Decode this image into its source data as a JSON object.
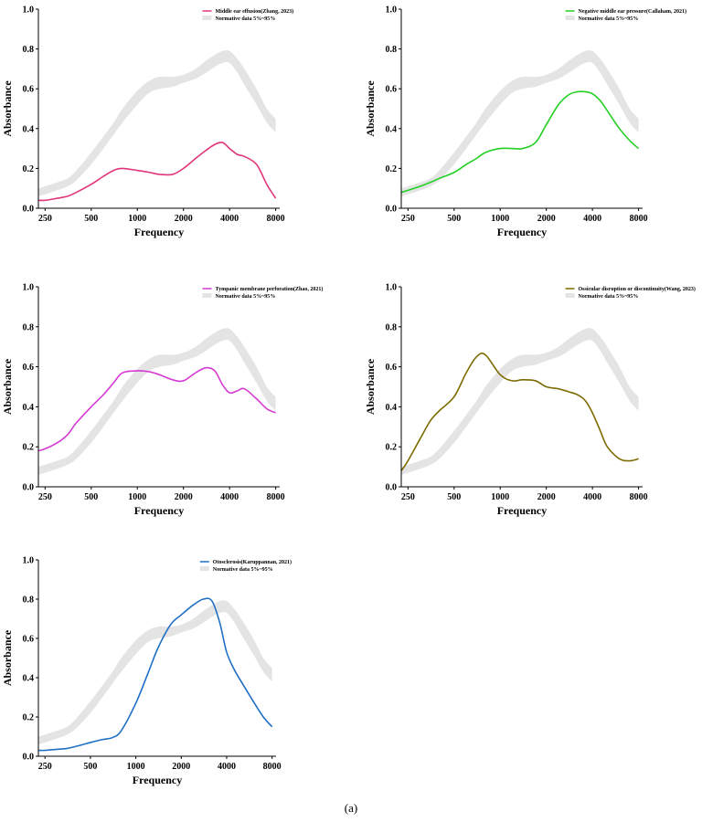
{
  "caption": "(a)",
  "colors": {
    "normative_band": "#e4e4e4",
    "axis": "#000000"
  },
  "chart_data": [
    {
      "type": "line",
      "xscale": "log",
      "x_ticks": [
        "250",
        "500",
        "1000",
        "2000",
        "4000",
        "8000"
      ],
      "x_tick_values": [
        250,
        500,
        1000,
        2000,
        4000,
        8000
      ],
      "y_ticks": [
        "0.0",
        "0.2",
        "0.4",
        "0.6",
        "0.8",
        "1.0"
      ],
      "y_tick_values": [
        0,
        0.2,
        0.4,
        0.6,
        0.8,
        1.0
      ],
      "ylim": [
        0,
        1.0
      ],
      "xlim": [
        226,
        8500
      ],
      "xlabel": "Frequency",
      "ylabel": "Absorbance",
      "legend_position": "top-right",
      "series": [
        {
          "name": "Middle ear effusion(Zhang, 2023)",
          "color": "#e0357a",
          "x": [
            226,
            250,
            300,
            350,
            400,
            500,
            600,
            700,
            800,
            1000,
            1200,
            1400,
            1700,
            2000,
            2400,
            2800,
            3200,
            3600,
            4000,
            4500,
            5000,
            6000,
            7000,
            8000
          ],
          "y": [
            0.04,
            0.04,
            0.05,
            0.06,
            0.08,
            0.12,
            0.16,
            0.19,
            0.2,
            0.19,
            0.18,
            0.17,
            0.17,
            0.2,
            0.25,
            0.29,
            0.32,
            0.33,
            0.3,
            0.27,
            0.26,
            0.22,
            0.12,
            0.05
          ]
        }
      ],
      "band": {
        "name": "Normative data 5%~95%",
        "x": [
          226,
          250,
          300,
          350,
          400,
          500,
          600,
          700,
          800,
          1000,
          1200,
          1400,
          1700,
          2000,
          2400,
          2800,
          3200,
          3600,
          4000,
          4500,
          5000,
          6000,
          7000,
          8000
        ],
        "lower": [
          0.06,
          0.07,
          0.09,
          0.11,
          0.14,
          0.22,
          0.3,
          0.37,
          0.43,
          0.52,
          0.58,
          0.6,
          0.61,
          0.63,
          0.65,
          0.68,
          0.71,
          0.73,
          0.73,
          0.68,
          0.62,
          0.52,
          0.43,
          0.38
        ],
        "upper": [
          0.1,
          0.11,
          0.13,
          0.15,
          0.19,
          0.28,
          0.36,
          0.43,
          0.5,
          0.59,
          0.64,
          0.66,
          0.66,
          0.67,
          0.7,
          0.74,
          0.77,
          0.79,
          0.79,
          0.75,
          0.7,
          0.6,
          0.5,
          0.45
        ]
      }
    },
    {
      "type": "line",
      "xscale": "log",
      "x_ticks": [
        "250",
        "500",
        "1000",
        "2000",
        "4000",
        "8000"
      ],
      "x_tick_values": [
        250,
        500,
        1000,
        2000,
        4000,
        8000
      ],
      "y_ticks": [
        "0.0",
        "0.2",
        "0.4",
        "0.6",
        "0.8",
        "1.0"
      ],
      "y_tick_values": [
        0,
        0.2,
        0.4,
        0.6,
        0.8,
        1.0
      ],
      "ylim": [
        0,
        1.0
      ],
      "xlim": [
        226,
        8500
      ],
      "xlabel": "Frequency",
      "ylabel": "Absorbance",
      "legend_position": "top-right",
      "series": [
        {
          "name": "Negative middle ear pressure(Callaham, 2021)",
          "color": "#22d022",
          "x": [
            226,
            250,
            300,
            350,
            400,
            500,
            600,
            700,
            800,
            1000,
            1200,
            1400,
            1700,
            2000,
            2400,
            2800,
            3200,
            3600,
            4000,
            4500,
            5000,
            6000,
            7000,
            8000
          ],
          "y": [
            0.08,
            0.09,
            0.11,
            0.13,
            0.15,
            0.18,
            0.22,
            0.25,
            0.28,
            0.3,
            0.3,
            0.3,
            0.33,
            0.42,
            0.52,
            0.57,
            0.585,
            0.585,
            0.575,
            0.54,
            0.49,
            0.4,
            0.34,
            0.3
          ]
        }
      ],
      "band": {
        "name": "Normative data 5%~95%",
        "x": [
          226,
          250,
          300,
          350,
          400,
          500,
          600,
          700,
          800,
          1000,
          1200,
          1400,
          1700,
          2000,
          2400,
          2800,
          3200,
          3600,
          4000,
          4500,
          5000,
          6000,
          7000,
          8000
        ],
        "lower": [
          0.06,
          0.07,
          0.09,
          0.11,
          0.14,
          0.22,
          0.3,
          0.37,
          0.43,
          0.52,
          0.58,
          0.6,
          0.61,
          0.63,
          0.65,
          0.68,
          0.71,
          0.73,
          0.73,
          0.68,
          0.62,
          0.52,
          0.43,
          0.38
        ],
        "upper": [
          0.1,
          0.11,
          0.13,
          0.15,
          0.19,
          0.28,
          0.36,
          0.43,
          0.5,
          0.59,
          0.64,
          0.66,
          0.66,
          0.67,
          0.7,
          0.74,
          0.77,
          0.79,
          0.79,
          0.75,
          0.7,
          0.6,
          0.5,
          0.45
        ]
      }
    },
    {
      "type": "line",
      "xscale": "log",
      "x_ticks": [
        "250",
        "500",
        "1000",
        "2000",
        "4000",
        "8000"
      ],
      "x_tick_values": [
        250,
        500,
        1000,
        2000,
        4000,
        8000
      ],
      "y_ticks": [
        "0.0",
        "0.2",
        "0.4",
        "0.6",
        "0.8",
        "1.0"
      ],
      "y_tick_values": [
        0,
        0.2,
        0.4,
        0.6,
        0.8,
        1.0
      ],
      "ylim": [
        0,
        1.0
      ],
      "xlim": [
        226,
        8500
      ],
      "xlabel": "Frequency",
      "ylabel": "Absorbance",
      "legend_position": "top-right",
      "series": [
        {
          "name": "Tympanic membrane perforation(Zhao, 2021)",
          "color": "#d43ad4",
          "x": [
            226,
            250,
            300,
            350,
            400,
            500,
            600,
            700,
            800,
            1000,
            1200,
            1400,
            1700,
            2000,
            2400,
            2800,
            3200,
            3600,
            4000,
            4500,
            5000,
            6000,
            7000,
            8000
          ],
          "y": [
            0.18,
            0.19,
            0.22,
            0.26,
            0.32,
            0.4,
            0.46,
            0.52,
            0.57,
            0.58,
            0.575,
            0.56,
            0.535,
            0.53,
            0.57,
            0.595,
            0.58,
            0.51,
            0.47,
            0.48,
            0.49,
            0.44,
            0.39,
            0.37
          ]
        }
      ],
      "band": {
        "name": "Normative data 5%~95%",
        "x": [
          226,
          250,
          300,
          350,
          400,
          500,
          600,
          700,
          800,
          1000,
          1200,
          1400,
          1700,
          2000,
          2400,
          2800,
          3200,
          3600,
          4000,
          4500,
          5000,
          6000,
          7000,
          8000
        ],
        "lower": [
          0.06,
          0.07,
          0.09,
          0.11,
          0.14,
          0.22,
          0.3,
          0.37,
          0.43,
          0.52,
          0.58,
          0.6,
          0.61,
          0.63,
          0.65,
          0.68,
          0.71,
          0.73,
          0.73,
          0.68,
          0.62,
          0.52,
          0.43,
          0.38
        ],
        "upper": [
          0.1,
          0.11,
          0.13,
          0.15,
          0.19,
          0.28,
          0.36,
          0.43,
          0.5,
          0.59,
          0.64,
          0.66,
          0.66,
          0.67,
          0.7,
          0.74,
          0.77,
          0.79,
          0.79,
          0.75,
          0.7,
          0.6,
          0.5,
          0.45
        ]
      }
    },
    {
      "type": "line",
      "xscale": "log",
      "x_ticks": [
        "250",
        "500",
        "1000",
        "2000",
        "4000",
        "8000"
      ],
      "x_tick_values": [
        250,
        500,
        1000,
        2000,
        4000,
        8000
      ],
      "y_ticks": [
        "0.0",
        "0.2",
        "0.4",
        "0.6",
        "0.8",
        "1.0"
      ],
      "y_tick_values": [
        0,
        0.2,
        0.4,
        0.6,
        0.8,
        1.0
      ],
      "ylim": [
        0,
        1.0
      ],
      "xlim": [
        226,
        8500
      ],
      "xlabel": "Frequency",
      "ylabel": "Absorbance",
      "legend_position": "top-right",
      "series": [
        {
          "name": "Ossicular disruption or discontinuity(Wang, 2023)",
          "color": "#7d6b00",
          "x": [
            226,
            250,
            300,
            350,
            400,
            500,
            600,
            700,
            800,
            1000,
            1200,
            1400,
            1700,
            2000,
            2400,
            2800,
            3200,
            3600,
            4000,
            4500,
            5000,
            6000,
            7000,
            8000
          ],
          "y": [
            0.08,
            0.13,
            0.24,
            0.33,
            0.38,
            0.45,
            0.57,
            0.65,
            0.66,
            0.56,
            0.53,
            0.535,
            0.53,
            0.5,
            0.49,
            0.475,
            0.46,
            0.43,
            0.37,
            0.28,
            0.2,
            0.14,
            0.13,
            0.14
          ]
        }
      ],
      "band": {
        "name": "Normative data 5%~95%",
        "x": [
          226,
          250,
          300,
          350,
          400,
          500,
          600,
          700,
          800,
          1000,
          1200,
          1400,
          1700,
          2000,
          2400,
          2800,
          3200,
          3600,
          4000,
          4500,
          5000,
          6000,
          7000,
          8000
        ],
        "lower": [
          0.06,
          0.07,
          0.09,
          0.11,
          0.14,
          0.22,
          0.3,
          0.37,
          0.43,
          0.52,
          0.58,
          0.6,
          0.61,
          0.63,
          0.65,
          0.68,
          0.71,
          0.73,
          0.73,
          0.68,
          0.62,
          0.52,
          0.43,
          0.38
        ],
        "upper": [
          0.1,
          0.11,
          0.13,
          0.15,
          0.19,
          0.28,
          0.36,
          0.43,
          0.5,
          0.59,
          0.64,
          0.66,
          0.66,
          0.67,
          0.7,
          0.74,
          0.77,
          0.79,
          0.79,
          0.75,
          0.7,
          0.6,
          0.5,
          0.45
        ]
      }
    },
    {
      "type": "line",
      "xscale": "log",
      "x_ticks": [
        "250",
        "500",
        "1000",
        "2000",
        "4000",
        "8000"
      ],
      "x_tick_values": [
        250,
        500,
        1000,
        2000,
        4000,
        8000
      ],
      "y_ticks": [
        "0.0",
        "0.2",
        "0.4",
        "0.6",
        "0.8",
        "1.0"
      ],
      "y_tick_values": [
        0,
        0.2,
        0.4,
        0.6,
        0.8,
        1.0
      ],
      "ylim": [
        0,
        1.0
      ],
      "xlim": [
        226,
        8500
      ],
      "xlabel": "Frequency",
      "ylabel": "Absorbance",
      "legend_position": "top-right",
      "series": [
        {
          "name": "Otosclerosis(Karuppannan, 2021)",
          "color": "#1f6fc4",
          "x": [
            226,
            250,
            300,
            350,
            400,
            500,
            600,
            700,
            800,
            1000,
            1200,
            1400,
            1700,
            2000,
            2400,
            2800,
            3200,
            3600,
            4000,
            4500,
            5000,
            6000,
            7000,
            8000
          ],
          "y": [
            0.03,
            0.03,
            0.035,
            0.04,
            0.05,
            0.07,
            0.085,
            0.095,
            0.13,
            0.27,
            0.42,
            0.55,
            0.67,
            0.72,
            0.77,
            0.8,
            0.79,
            0.68,
            0.53,
            0.44,
            0.38,
            0.28,
            0.2,
            0.15
          ]
        }
      ],
      "band": {
        "name": "Normative data 5%~95%",
        "x": [
          226,
          250,
          300,
          350,
          400,
          500,
          600,
          700,
          800,
          1000,
          1200,
          1400,
          1700,
          2000,
          2400,
          2800,
          3200,
          3600,
          4000,
          4500,
          5000,
          6000,
          7000,
          8000
        ],
        "lower": [
          0.06,
          0.07,
          0.09,
          0.11,
          0.14,
          0.22,
          0.3,
          0.37,
          0.43,
          0.52,
          0.58,
          0.6,
          0.61,
          0.63,
          0.65,
          0.68,
          0.71,
          0.73,
          0.73,
          0.68,
          0.62,
          0.52,
          0.43,
          0.38
        ],
        "upper": [
          0.1,
          0.11,
          0.13,
          0.15,
          0.19,
          0.28,
          0.36,
          0.43,
          0.5,
          0.59,
          0.64,
          0.66,
          0.66,
          0.67,
          0.7,
          0.74,
          0.77,
          0.79,
          0.79,
          0.75,
          0.7,
          0.6,
          0.5,
          0.45
        ]
      }
    }
  ]
}
